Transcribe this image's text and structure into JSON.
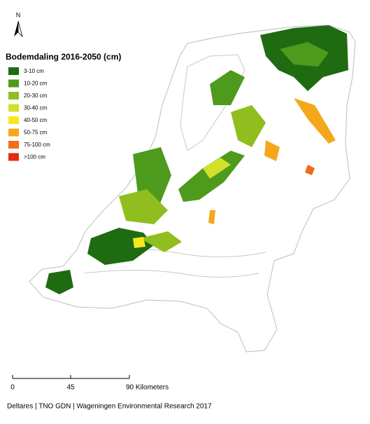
{
  "north_arrow": {
    "label": "N"
  },
  "legend": {
    "title": "Bodemdaling 2016-2050 (cm)",
    "items": [
      {
        "label": "3-10 cm",
        "color": "#1e6b12"
      },
      {
        "label": "10-20 cm",
        "color": "#4e9a1c"
      },
      {
        "label": "20-30 cm",
        "color": "#8fbe1e"
      },
      {
        "label": "30-40 cm",
        "color": "#d3e02a"
      },
      {
        "label": "40-50 cm",
        "color": "#f6e81a"
      },
      {
        "label": "50-75 cm",
        "color": "#f5a71c"
      },
      {
        "label": "75-100 cm",
        "color": "#ef6d14"
      },
      {
        "label": ">100 cm",
        "color": "#e52b14"
      }
    ]
  },
  "scale_bar": {
    "labels": [
      "0",
      "45",
      "90 Kilometers"
    ]
  },
  "credit": "Deltares | TNO GDN | Wageningen Environmental Research 2017"
}
